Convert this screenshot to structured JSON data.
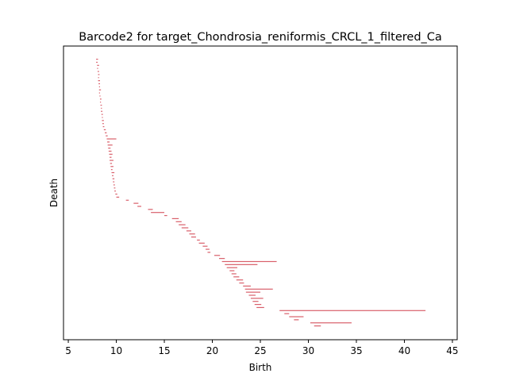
{
  "chart_data": {
    "type": "barcode",
    "title": "Barcode2 for target_Chondrosia_reniformis_CRCL_1_filtered_Ca",
    "xlabel": "Birth",
    "ylabel": "Death",
    "xlim": [
      4.5,
      45.5
    ],
    "xticks": [
      5,
      10,
      15,
      20,
      25,
      30,
      35,
      40,
      45
    ],
    "yticks": [],
    "grid": false,
    "bar_color": "#d9606b",
    "bars_note": "Each bar is a persistence interval [birth, death]; bars stacked vertically top (index 0) to bottom.",
    "bars": [
      [
        7.9,
        8.1
      ],
      [
        7.9,
        8.05
      ],
      [
        8.0,
        8.2
      ],
      [
        8.0,
        8.1
      ],
      [
        8.05,
        8.2
      ],
      [
        8.1,
        8.25
      ],
      [
        8.1,
        8.2
      ],
      [
        8.1,
        8.3
      ],
      [
        8.15,
        8.3
      ],
      [
        8.2,
        8.3
      ],
      [
        8.2,
        8.4
      ],
      [
        8.2,
        8.3
      ],
      [
        8.25,
        8.35
      ],
      [
        8.3,
        8.45
      ],
      [
        8.3,
        8.4
      ],
      [
        8.35,
        8.5
      ],
      [
        8.4,
        8.5
      ],
      [
        8.4,
        8.55
      ],
      [
        8.45,
        8.6
      ],
      [
        8.5,
        8.6
      ],
      [
        8.5,
        8.7
      ],
      [
        8.55,
        8.7
      ],
      [
        8.6,
        8.75
      ],
      [
        8.7,
        8.9
      ],
      [
        8.8,
        9.0
      ],
      [
        8.9,
        9.1
      ],
      [
        9.0,
        10.0
      ],
      [
        9.05,
        9.3
      ],
      [
        9.1,
        9.6
      ],
      [
        9.15,
        9.4
      ],
      [
        9.2,
        9.5
      ],
      [
        9.25,
        9.6
      ],
      [
        9.3,
        9.5
      ],
      [
        9.3,
        9.7
      ],
      [
        9.35,
        9.55
      ],
      [
        9.4,
        9.7
      ],
      [
        9.45,
        9.6
      ],
      [
        9.5,
        9.8
      ],
      [
        9.55,
        9.7
      ],
      [
        9.6,
        9.8
      ],
      [
        9.65,
        9.8
      ],
      [
        9.7,
        9.85
      ],
      [
        9.75,
        9.9
      ],
      [
        9.8,
        9.95
      ],
      [
        9.9,
        10.1
      ],
      [
        10.0,
        10.3
      ],
      [
        11.0,
        11.3
      ],
      [
        11.8,
        12.3
      ],
      [
        12.2,
        12.6
      ],
      [
        13.3,
        13.8
      ],
      [
        13.6,
        15.0
      ],
      [
        15.0,
        15.3
      ],
      [
        15.8,
        16.5
      ],
      [
        16.2,
        16.8
      ],
      [
        16.5,
        17.2
      ],
      [
        16.8,
        17.5
      ],
      [
        17.3,
        17.8
      ],
      [
        17.6,
        18.2
      ],
      [
        17.8,
        18.3
      ],
      [
        18.4,
        18.7
      ],
      [
        18.6,
        19.2
      ],
      [
        19.0,
        19.5
      ],
      [
        19.3,
        19.7
      ],
      [
        19.5,
        19.8
      ],
      [
        20.2,
        20.8
      ],
      [
        20.7,
        21.3
      ],
      [
        21.0,
        26.7
      ],
      [
        21.3,
        24.7
      ],
      [
        21.5,
        22.6
      ],
      [
        21.8,
        22.3
      ],
      [
        22.0,
        22.5
      ],
      [
        22.2,
        22.8
      ],
      [
        22.5,
        23.2
      ],
      [
        22.8,
        23.3
      ],
      [
        23.2,
        24.0
      ],
      [
        23.4,
        26.3
      ],
      [
        23.5,
        25.0
      ],
      [
        23.8,
        24.5
      ],
      [
        24.0,
        25.3
      ],
      [
        24.2,
        24.8
      ],
      [
        24.4,
        25.1
      ],
      [
        24.6,
        25.4
      ],
      [
        27.0,
        42.2
      ],
      [
        27.5,
        28.0
      ],
      [
        28.0,
        29.5
      ],
      [
        28.5,
        29.0
      ],
      [
        30.2,
        34.5
      ],
      [
        30.6,
        31.3
      ]
    ]
  }
}
